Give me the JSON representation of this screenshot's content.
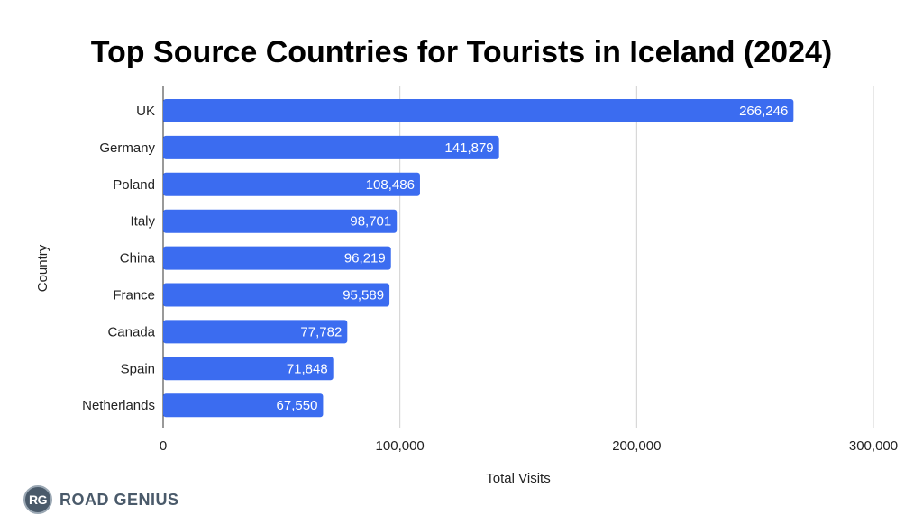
{
  "chart_data": {
    "type": "bar",
    "orientation": "horizontal",
    "title": "Top Source Countries for Tourists in Iceland (2024)",
    "xlabel": "Total Visits",
    "ylabel": "Country",
    "xlim": [
      0,
      300000
    ],
    "xticks": [
      0,
      100000,
      200000,
      300000
    ],
    "xtick_labels": [
      "0",
      "100,000",
      "200,000",
      "300,000"
    ],
    "categories": [
      "UK",
      "Germany",
      "Poland",
      "Italy",
      "China",
      "France",
      "Canada",
      "Spain",
      "Netherlands"
    ],
    "values": [
      266246,
      141879,
      108486,
      98701,
      96219,
      95589,
      77782,
      71848,
      67550
    ],
    "value_labels": [
      "266,246",
      "141,879",
      "108,486",
      "98,701",
      "96,219",
      "95,589",
      "77,782",
      "71,848",
      "67,550"
    ],
    "bar_color": "#3b6cf0",
    "grid": "vertical",
    "legend": "none"
  },
  "brand": {
    "badge": "RG",
    "name": "ROAD GENIUS",
    "color": "#4a5a6a"
  }
}
